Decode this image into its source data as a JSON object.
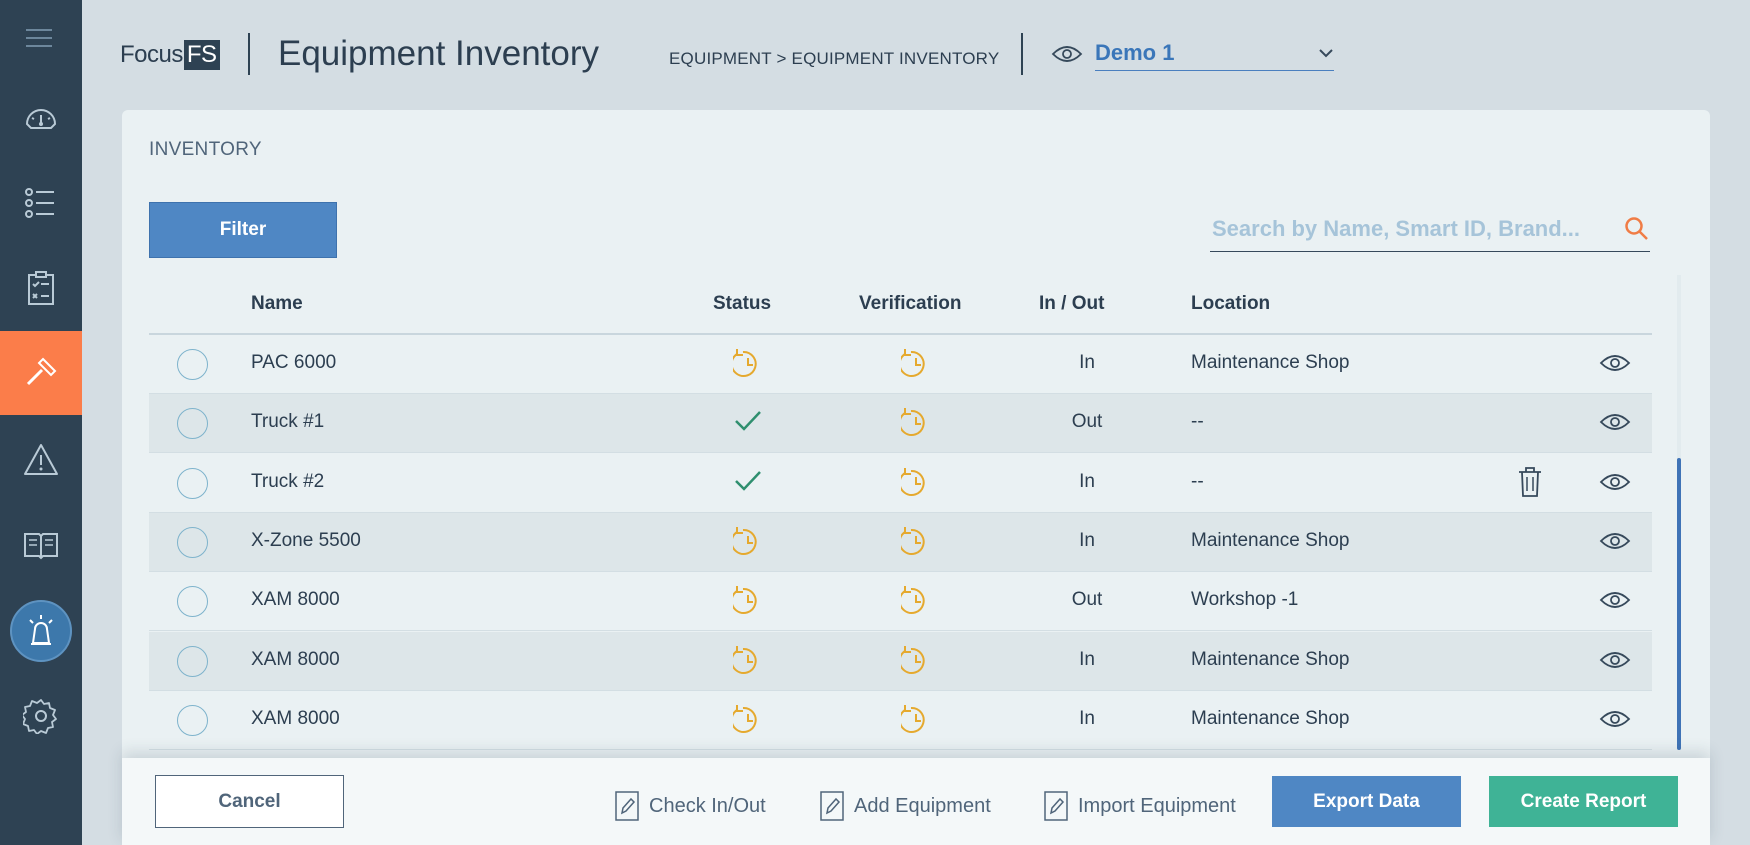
{
  "header": {
    "logo_text": "Focus",
    "logo_box": "FS",
    "title": "Equipment Inventory",
    "breadcrumb": "EQUIPMENT > EQUIPMENT INVENTORY",
    "view_selector": "Demo 1"
  },
  "sidebar": {
    "items": [
      "menu-icon",
      "dashboard-icon",
      "list-icon",
      "checklist-icon",
      "hammer-icon",
      "warning-icon",
      "book-icon",
      "alarm-icon",
      "gear-icon"
    ],
    "active": "hammer-icon",
    "active_color": "#fb7d4a"
  },
  "inventory": {
    "section_label": "INVENTORY",
    "filter_label": "Filter",
    "search_placeholder": "Search by Name, Smart ID, Brand...",
    "columns": [
      "Name",
      "Status",
      "Verification",
      "In / Out",
      "Location"
    ],
    "rows": [
      {
        "name": "PAC 6000",
        "status": "pending",
        "verification": "pending",
        "inout": "In",
        "location": "Maintenance Shop"
      },
      {
        "name": "Truck #1",
        "status": "ok",
        "verification": "pending",
        "inout": "Out",
        "location": "--"
      },
      {
        "name": "Truck #2",
        "status": "ok",
        "verification": "pending",
        "inout": "In",
        "location": "--"
      },
      {
        "name": "X-Zone 5500",
        "status": "pending",
        "verification": "pending",
        "inout": "In",
        "location": "Maintenance Shop"
      },
      {
        "name": "XAM 8000",
        "status": "pending",
        "verification": "pending",
        "inout": "Out",
        "location": "Workshop -1"
      },
      {
        "name": "XAM 8000",
        "status": "pending",
        "verification": "pending",
        "inout": "In",
        "location": "Maintenance Shop"
      },
      {
        "name": "XAM 8000",
        "status": "pending",
        "verification": "pending",
        "inout": "In",
        "location": "Maintenance Shop"
      }
    ]
  },
  "footer": {
    "cancel": "Cancel",
    "check_inout": "Check In/Out",
    "add_equipment": "Add Equipment",
    "import_equipment": "Import Equipment",
    "export_data": "Export Data",
    "create_report": "Create Report"
  },
  "colors": {
    "primary": "#4f87c4",
    "success": "#3fb396",
    "pending": "#e5a92e",
    "check": "#2f8f6f"
  }
}
